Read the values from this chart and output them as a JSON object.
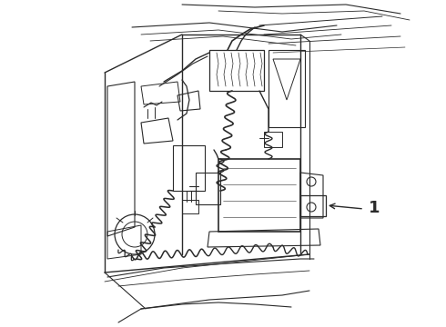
{
  "background_color": "#ffffff",
  "line_color": "#2a2a2a",
  "line_width": 0.7,
  "label_number": "1",
  "figsize": [
    4.9,
    3.6
  ],
  "dpi": 100,
  "img_extent": [
    0,
    490,
    0,
    360
  ]
}
